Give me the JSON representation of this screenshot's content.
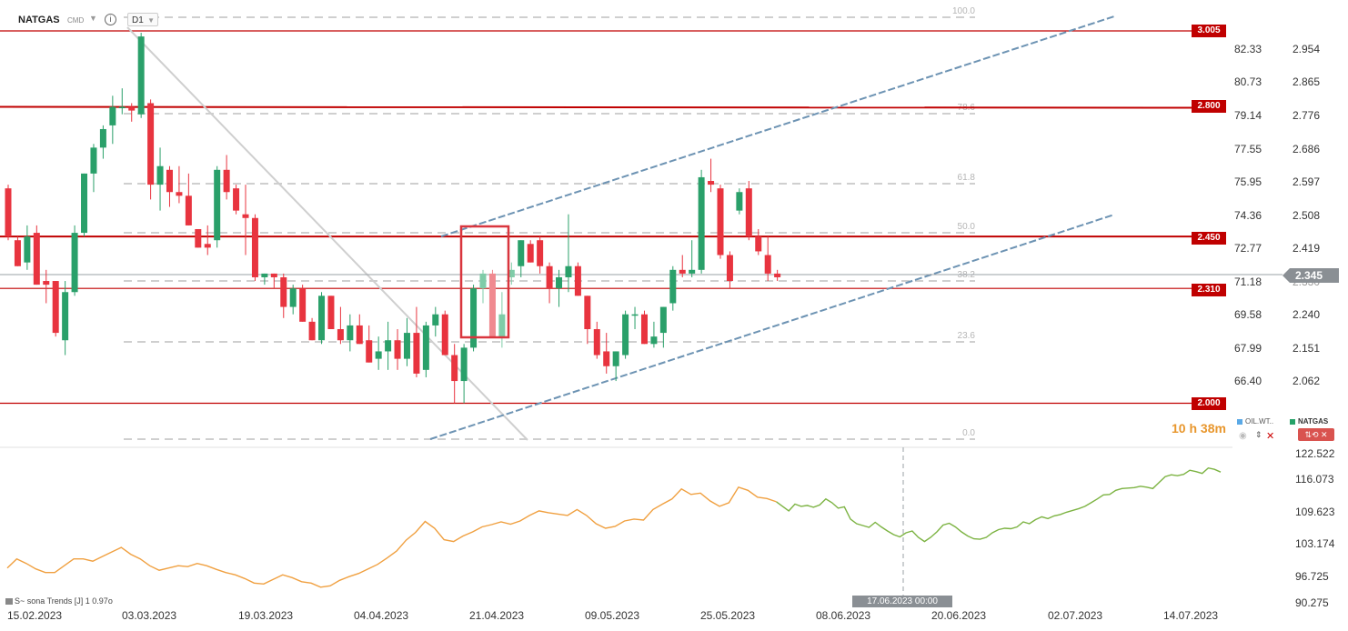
{
  "toolbar": {
    "symbol": "NATGAS",
    "type": "CMD",
    "timeframe": "D1",
    "info_icon": "i",
    "caret": "▼"
  },
  "levels": [
    {
      "label": "3.005",
      "value": 3.005
    },
    {
      "label": "2.800",
      "value": 2.8
    },
    {
      "label": "2.450",
      "value": 2.45
    },
    {
      "label": "2.310",
      "value": 2.31
    },
    {
      "label": "2.000",
      "value": 2.0
    }
  ],
  "fib_labels": [
    "100.0",
    "78.6",
    "61.8",
    "50.0",
    "38.2",
    "23.6",
    "0.0"
  ],
  "current_price": "2.345",
  "right_axis": [
    "2.954",
    "2.865",
    "2.776",
    "2.686",
    "2.597",
    "2.508",
    "2.419",
    "2.330",
    "2.240",
    "2.151",
    "2.062"
  ],
  "left_axis": [
    "82.33",
    "80.73",
    "79.14",
    "77.55",
    "75.95",
    "74.36",
    "72.77",
    "71.18",
    "69.58",
    "67.99",
    "66.40"
  ],
  "indicator_axis": [
    "122.522",
    "116.073",
    "109.623",
    "103.174",
    "96.725",
    "90.275"
  ],
  "countdown": "10 h 38m",
  "legend": {
    "series_a": "OIL.WT..",
    "series_b": "NATGAS",
    "color_a": "#5aa9e6",
    "color_b": "#26a269",
    "eye_icon": "eye-icon",
    "toggle_label": "⇅⟲ ✕"
  },
  "dates": [
    "15.02.2023",
    "03.03.2023",
    "19.03.2023",
    "04.04.2023",
    "21.04.2023",
    "09.05.2023",
    "25.05.2023",
    "08.06.2023",
    "20.06.2023",
    "02.07.2023",
    "14.07.2023"
  ],
  "crosshair_date": "17.06.2023 00:00",
  "indicator_label": "S~ sona  Trends  [J]  1 0.97o",
  "colors": {
    "bull": "#2aa06a",
    "bear": "#e8343f",
    "level": "#c00000",
    "channel": "#6d93b3",
    "fib": "#cfcfcf",
    "orange": "#f0a040",
    "green_line": "#7cb342"
  },
  "chart_data": {
    "type": "candlestick",
    "ohlc": [
      [
        2.58,
        2.59,
        2.44,
        2.45
      ],
      [
        2.44,
        2.45,
        2.37,
        2.37
      ],
      [
        2.38,
        2.48,
        2.36,
        2.45
      ],
      [
        2.46,
        2.48,
        2.32,
        2.32
      ],
      [
        2.33,
        2.36,
        2.27,
        2.32
      ],
      [
        2.33,
        2.33,
        2.18,
        2.19
      ],
      [
        2.17,
        2.33,
        2.13,
        2.3
      ],
      [
        2.3,
        2.48,
        2.29,
        2.46
      ],
      [
        2.46,
        2.62,
        2.45,
        2.62
      ],
      [
        2.62,
        2.7,
        2.57,
        2.69
      ],
      [
        2.69,
        2.75,
        2.66,
        2.74
      ],
      [
        2.75,
        2.83,
        2.7,
        2.8
      ],
      [
        2.8,
        2.85,
        2.78,
        2.8
      ],
      [
        2.8,
        2.81,
        2.76,
        2.79
      ],
      [
        2.78,
        3.0,
        2.77,
        2.99
      ],
      [
        2.81,
        2.82,
        2.55,
        2.59
      ],
      [
        2.59,
        2.69,
        2.52,
        2.64
      ],
      [
        2.63,
        2.64,
        2.53,
        2.57
      ],
      [
        2.57,
        2.64,
        2.54,
        2.56
      ],
      [
        2.56,
        2.62,
        2.48,
        2.48
      ],
      [
        2.47,
        2.47,
        2.42,
        2.42
      ],
      [
        2.43,
        2.48,
        2.4,
        2.42
      ],
      [
        2.44,
        2.64,
        2.42,
        2.63
      ],
      [
        2.63,
        2.67,
        2.55,
        2.57
      ],
      [
        2.58,
        2.59,
        2.51,
        2.52
      ],
      [
        2.51,
        2.59,
        2.4,
        2.5
      ],
      [
        2.5,
        2.51,
        2.33,
        2.34
      ],
      [
        2.34,
        2.35,
        2.32,
        2.35
      ],
      [
        2.35,
        2.35,
        2.31,
        2.34
      ],
      [
        2.34,
        2.35,
        2.23,
        2.26
      ],
      [
        2.26,
        2.32,
        2.24,
        2.31
      ],
      [
        2.31,
        2.32,
        2.22,
        2.22
      ],
      [
        2.22,
        2.23,
        2.17,
        2.17
      ],
      [
        2.17,
        2.3,
        2.16,
        2.29
      ],
      [
        2.29,
        2.29,
        2.2,
        2.2
      ],
      [
        2.2,
        2.26,
        2.16,
        2.17
      ],
      [
        2.17,
        2.24,
        2.14,
        2.21
      ],
      [
        2.21,
        2.24,
        2.16,
        2.16
      ],
      [
        2.17,
        2.21,
        2.11,
        2.11
      ],
      [
        2.12,
        2.18,
        2.09,
        2.14
      ],
      [
        2.14,
        2.22,
        2.09,
        2.17
      ],
      [
        2.17,
        2.2,
        2.09,
        2.12
      ],
      [
        2.12,
        2.23,
        2.1,
        2.19
      ],
      [
        2.19,
        2.26,
        2.07,
        2.08
      ],
      [
        2.09,
        2.22,
        2.07,
        2.21
      ],
      [
        2.21,
        2.26,
        2.18,
        2.24
      ],
      [
        2.24,
        2.25,
        2.13,
        2.13
      ],
      [
        2.13,
        2.16,
        2.0,
        2.06
      ],
      [
        2.06,
        2.16,
        2.0,
        2.15
      ],
      [
        2.15,
        2.32,
        2.14,
        2.31
      ],
      [
        2.31,
        2.36,
        2.27,
        2.35
      ],
      [
        2.35,
        2.36,
        2.18,
        2.18
      ],
      [
        2.18,
        2.3,
        2.15,
        2.24
      ],
      [
        2.34,
        2.38,
        2.32,
        2.36
      ],
      [
        2.37,
        2.44,
        2.34,
        2.44
      ],
      [
        2.43,
        2.44,
        2.38,
        2.38
      ],
      [
        2.44,
        2.45,
        2.35,
        2.37
      ],
      [
        2.37,
        2.38,
        2.27,
        2.31
      ],
      [
        2.31,
        2.36,
        2.26,
        2.34
      ],
      [
        2.34,
        2.51,
        2.3,
        2.37
      ],
      [
        2.37,
        2.38,
        2.29,
        2.29
      ],
      [
        2.29,
        2.29,
        2.16,
        2.2
      ],
      [
        2.2,
        2.22,
        2.12,
        2.13
      ],
      [
        2.14,
        2.19,
        2.08,
        2.1
      ],
      [
        2.1,
        2.14,
        2.06,
        2.14
      ],
      [
        2.13,
        2.25,
        2.12,
        2.24
      ],
      [
        2.24,
        2.26,
        2.2,
        2.24
      ],
      [
        2.24,
        2.25,
        2.16,
        2.16
      ],
      [
        2.16,
        2.22,
        2.15,
        2.18
      ],
      [
        2.19,
        2.26,
        2.15,
        2.26
      ],
      [
        2.27,
        2.37,
        2.25,
        2.36
      ],
      [
        2.36,
        2.4,
        2.34,
        2.35
      ],
      [
        2.35,
        2.44,
        2.34,
        2.36
      ],
      [
        2.36,
        2.63,
        2.35,
        2.61
      ],
      [
        2.6,
        2.66,
        2.57,
        2.59
      ],
      [
        2.58,
        2.59,
        2.39,
        2.4
      ],
      [
        2.4,
        2.41,
        2.31,
        2.33
      ],
      [
        2.52,
        2.58,
        2.51,
        2.57
      ],
      [
        2.58,
        2.6,
        2.44,
        2.45
      ],
      [
        2.45,
        2.47,
        2.4,
        2.41
      ],
      [
        2.4,
        2.45,
        2.33,
        2.35
      ],
      [
        2.35,
        2.36,
        2.33,
        2.34
      ]
    ],
    "levels": [
      3.005,
      2.8,
      2.45,
      2.31,
      2.0
    ],
    "fibonacci": [
      "100.0",
      "78.6",
      "61.8",
      "50.0",
      "38.2",
      "23.6",
      "0.0"
    ],
    "indicator": {
      "orange_series": [
        97.5,
        99.5,
        98.5,
        97.3,
        96.5,
        96.5,
        98,
        99.5,
        99.5,
        99,
        100,
        101,
        102,
        100.5,
        99.5,
        98,
        97,
        97.5,
        98,
        97.8,
        98.5,
        98,
        97.2,
        96.5,
        96,
        95.2,
        94.2,
        94,
        95,
        96,
        95.4,
        94.5,
        94.2,
        93.3,
        93.6,
        94.8,
        95.6,
        96.3,
        97.3,
        98.3,
        99.7,
        101.2,
        103.6,
        105.3,
        107.7,
        106.2,
        103.7,
        103.3,
        104.5,
        105.4,
        106.5,
        107,
        107.6,
        107.1,
        107.8,
        109,
        110,
        109.6,
        109.3,
        109,
        110.3,
        109,
        107.2,
        106.2,
        106.6,
        107.8,
        108.2,
        108,
        110.3,
        111.5,
        112.6,
        114.8,
        113.6,
        113.9,
        112.2,
        111,
        111.8,
        115.2,
        114.5,
        113,
        112.7,
        112
      ],
      "green_series": [
        112,
        111,
        110,
        111.5,
        111,
        111.2,
        110.8,
        111.3,
        112.6,
        111.8,
        110.6,
        110.9,
        108.2,
        107.2,
        106.8,
        106.4,
        107.5,
        106.5,
        105.6,
        104.8,
        104.3,
        105.2,
        105.6,
        104.2,
        103.3,
        104.2,
        105.4,
        106.9,
        107.3,
        106.5,
        105.4,
        104.5,
        103.9,
        103.8,
        104.2,
        105.2,
        105.9,
        106.2,
        106.1,
        106.5,
        107.6,
        107.2,
        108.1,
        108.7,
        108.3,
        108.9,
        109.2,
        109.7,
        110.1,
        110.5,
        111,
        111.8,
        112.6,
        113.5,
        113.6,
        114.5,
        114.9,
        115,
        115.1,
        115.4,
        115.2,
        114.9,
        116.2,
        117.5,
        117.9,
        117.7,
        118,
        118.9,
        118.6,
        118.2,
        119.4,
        119.1,
        118.5
      ]
    },
    "crosshair_date": "17.06.2023 00:00"
  }
}
